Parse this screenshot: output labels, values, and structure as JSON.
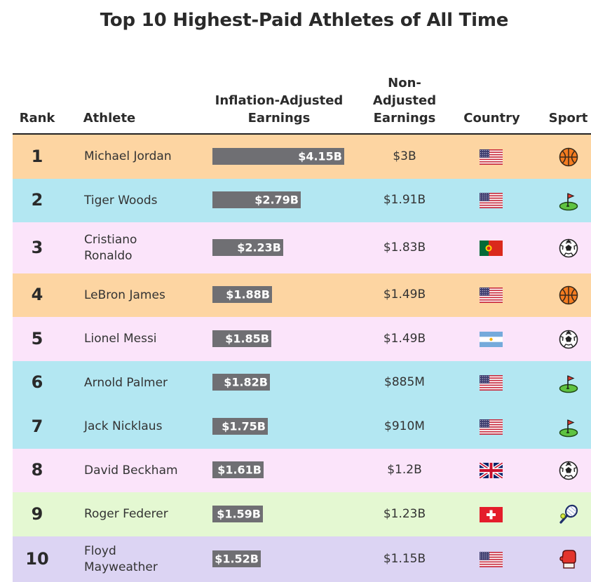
{
  "chart_data": {
    "type": "table",
    "title": "Top 10 Highest-Paid Athletes of All Time",
    "columns": [
      "Rank",
      "Athlete",
      "Inflation-Adjusted Earnings",
      "Non-Adjusted Earnings",
      "Country",
      "Sport"
    ],
    "header_lines": {
      "rank": [
        "Rank"
      ],
      "athlete": [
        "Athlete"
      ],
      "adjusted": [
        "Inflation-Adjusted",
        "Earnings"
      ],
      "nonadjusted": [
        "Non-",
        "Adjusted",
        "Earnings"
      ],
      "country": [
        "Country"
      ],
      "sport": [
        "Sport"
      ]
    },
    "value_unit": "billion USD",
    "rows": [
      {
        "rank": "1",
        "athlete_lines": [
          "Michael Jordan"
        ],
        "adjusted_value": 4.15,
        "adjusted_label": "$4.15B",
        "nonadjusted_label": "$3B",
        "country": "usa",
        "sport": "basketball",
        "row_color": "#fdd5a2"
      },
      {
        "rank": "2",
        "athlete_lines": [
          "Tiger Woods"
        ],
        "adjusted_value": 2.79,
        "adjusted_label": "$2.79B",
        "nonadjusted_label": "$1.91B",
        "country": "usa",
        "sport": "golf",
        "row_color": "#b3e7f2"
      },
      {
        "rank": "3",
        "athlete_lines": [
          "Cristiano",
          "Ronaldo"
        ],
        "adjusted_value": 2.23,
        "adjusted_label": "$2.23B",
        "nonadjusted_label": "$1.83B",
        "country": "portugal",
        "sport": "soccer",
        "row_color": "#fbe4fa"
      },
      {
        "rank": "4",
        "athlete_lines": [
          "LeBron James"
        ],
        "adjusted_value": 1.88,
        "adjusted_label": "$1.88B",
        "nonadjusted_label": "$1.49B",
        "country": "usa",
        "sport": "basketball",
        "row_color": "#fdd5a2"
      },
      {
        "rank": "5",
        "athlete_lines": [
          "Lionel Messi"
        ],
        "adjusted_value": 1.85,
        "adjusted_label": "$1.85B",
        "nonadjusted_label": "$1.49B",
        "country": "argentina",
        "sport": "soccer",
        "row_color": "#fbe4fa"
      },
      {
        "rank": "6",
        "athlete_lines": [
          "Arnold Palmer"
        ],
        "adjusted_value": 1.82,
        "adjusted_label": "$1.82B",
        "nonadjusted_label": "$885M",
        "country": "usa",
        "sport": "golf",
        "row_color": "#b3e7f2"
      },
      {
        "rank": "7",
        "athlete_lines": [
          "Jack Nicklaus"
        ],
        "adjusted_value": 1.75,
        "adjusted_label": "$1.75B",
        "nonadjusted_label": "$910M",
        "country": "usa",
        "sport": "golf",
        "row_color": "#b3e7f2"
      },
      {
        "rank": "8",
        "athlete_lines": [
          "David Beckham"
        ],
        "adjusted_value": 1.61,
        "adjusted_label": "$1.61B",
        "nonadjusted_label": "$1.2B",
        "country": "uk",
        "sport": "soccer",
        "row_color": "#fbe4fa"
      },
      {
        "rank": "9",
        "athlete_lines": [
          "Roger Federer"
        ],
        "adjusted_value": 1.59,
        "adjusted_label": "$1.59B",
        "nonadjusted_label": "$1.23B",
        "country": "switzerland",
        "sport": "tennis",
        "row_color": "#e4f8d2"
      },
      {
        "rank": "10",
        "athlete_lines": [
          "Floyd",
          "Mayweather"
        ],
        "adjusted_value": 1.52,
        "adjusted_label": "$1.52B",
        "nonadjusted_label": "$1.15B",
        "country": "usa",
        "sport": "boxing",
        "row_color": "#dcd4f3"
      }
    ],
    "colors": {
      "bar": "#6f6f73",
      "bar_text": "#ffffff",
      "header_rule": "#222222"
    }
  }
}
